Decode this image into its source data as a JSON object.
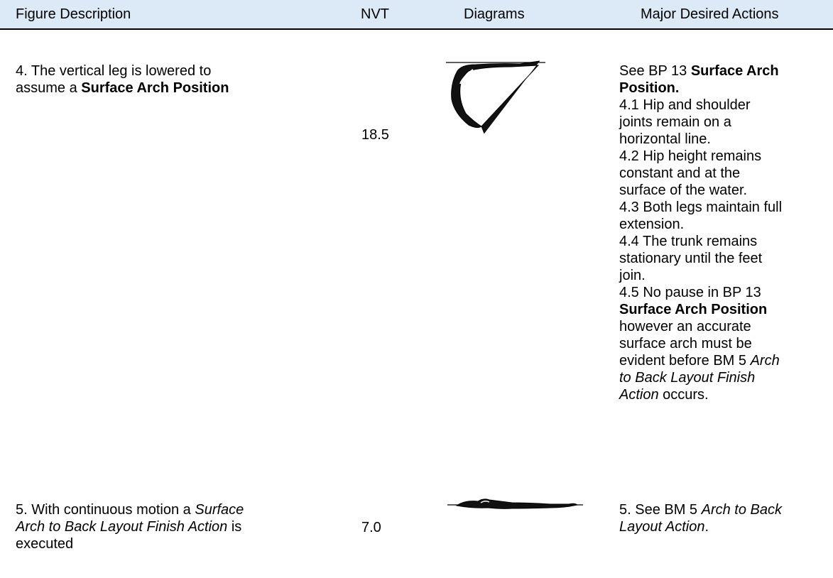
{
  "table": {
    "header": [
      "Figure Description",
      "NVT",
      "Diagrams",
      "Major Desired Actions"
    ],
    "rows": [
      {
        "description": [
          [
            "4. The vertical leg is lowered to"
          ],
          [
            "assume a ",
            {
              "text": "Surface Arch Position",
              "style": "bold"
            }
          ]
        ],
        "nvt": "18.5",
        "actions": [
          [
            "See BP 13 ",
            {
              "text": "Surface Arch",
              "style": "bold"
            }
          ],
          [
            {
              "text": "Position.",
              "style": "bold"
            }
          ],
          [
            "4.1 Hip and shoulder"
          ],
          [
            "joints remain on a"
          ],
          [
            "horizontal line."
          ],
          [
            "4.2 Hip height remains"
          ],
          [
            "constant and at the"
          ],
          [
            "surface of the water."
          ],
          [
            "4.3 Both legs maintain full"
          ],
          [
            "extension."
          ],
          [
            "4.4 The trunk remains"
          ],
          [
            "stationary until the feet"
          ],
          [
            "join."
          ],
          [
            "4.5 No pause in BP 13"
          ],
          [
            {
              "text": "Surface Arch Position",
              "style": "bold"
            }
          ],
          [
            "however an accurate"
          ],
          [
            "surface arch must be"
          ],
          [
            "evident before BM 5 ",
            {
              "text": "Arch",
              "style": "italic"
            }
          ],
          [
            {
              "text": "to Back Layout Finish",
              "style": "italic"
            }
          ],
          [
            {
              "text": "Action",
              "style": "italic"
            },
            " occurs."
          ]
        ]
      },
      {
        "description": [
          [
            "5. With continuous motion a ",
            {
              "text": "Surface",
              "style": "italic"
            }
          ],
          [
            {
              "text": "Arch to Back Layout Finish Action",
              "style": "italic"
            },
            " is"
          ],
          [
            "executed"
          ]
        ],
        "nvt": "7.0",
        "actions": [
          [
            "5. See BM 5 ",
            {
              "text": "Arch to Back",
              "style": "italic"
            }
          ],
          [
            {
              "text": "Layout Action",
              "style": "italic"
            },
            "."
          ]
        ]
      }
    ]
  }
}
